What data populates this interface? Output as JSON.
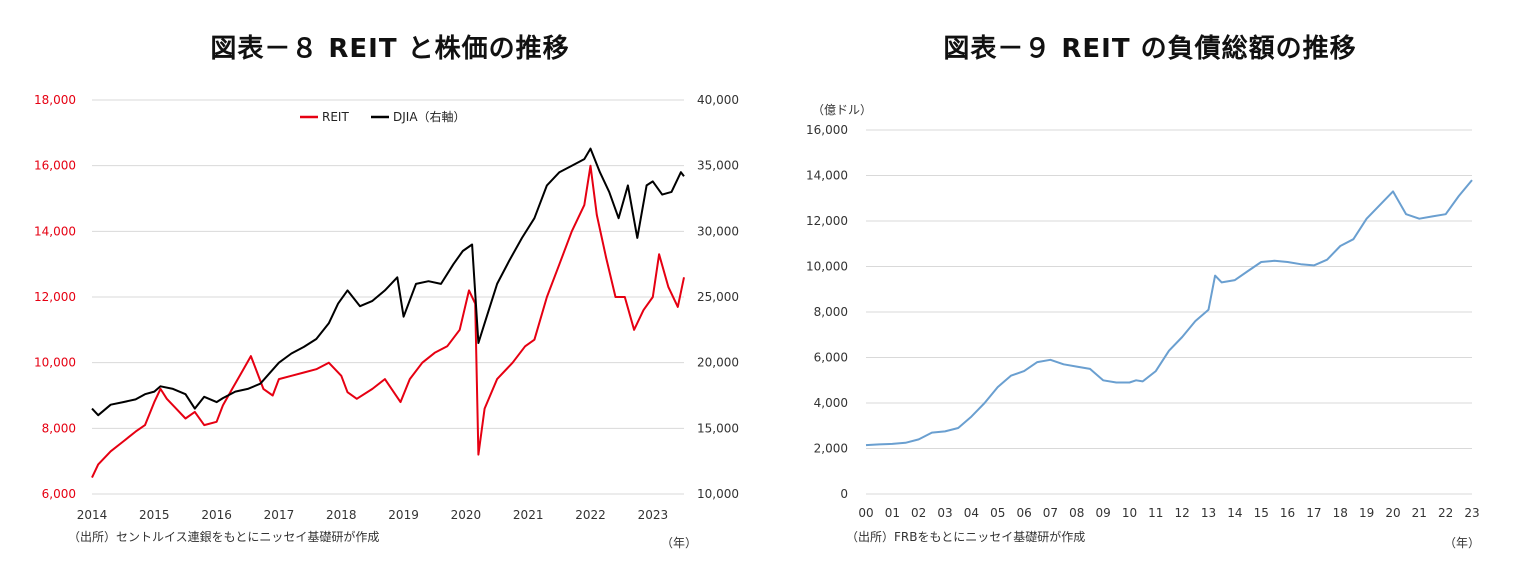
{
  "chart8": {
    "title": "図表－８ REIT と株価の推移",
    "source": "（出所）セントルイス連銀をもとにニッセイ基礎研が作成",
    "unit_note": "（年）",
    "legend": [
      "REIT",
      "DJIA（右軸）"
    ]
  },
  "chart9": {
    "title": "図表－９ REIT の負債総額の推移",
    "source": "（出所）FRBをもとにニッセイ基礎研が作成",
    "unit_note": "（年）",
    "y_unit": "（億ドル）"
  },
  "chart_data": [
    {
      "type": "line",
      "title": "図表－８ REIT と株価の推移",
      "x_ticks": [
        "2014",
        "2015",
        "2016",
        "2017",
        "2018",
        "2019",
        "2020",
        "2021",
        "2022",
        "2023"
      ],
      "xlim": [
        2014.0,
        2023.5
      ],
      "ylim_left": [
        6000,
        18000
      ],
      "yticks_left": [
        "6,000",
        "8,000",
        "10,000",
        "12,000",
        "14,000",
        "16,000",
        "18,000"
      ],
      "ylim_right": [
        10000,
        40000
      ],
      "yticks_right": [
        "10,000",
        "15,000",
        "20,000",
        "25,000",
        "30,000",
        "35,000",
        "40,000"
      ],
      "grid": true,
      "legend_position": "top-center",
      "colors": {
        "REIT": "#e60012",
        "DJIA": "#000000"
      },
      "series": [
        {
          "name": "REIT",
          "axis": "left",
          "x": [
            2014.0,
            2014.1,
            2014.3,
            2014.5,
            2014.7,
            2014.85,
            2015.0,
            2015.1,
            2015.2,
            2015.35,
            2015.5,
            2015.65,
            2015.8,
            2016.0,
            2016.1,
            2016.25,
            2016.4,
            2016.55,
            2016.75,
            2016.9,
            2017.0,
            2017.2,
            2017.4,
            2017.6,
            2017.8,
            2018.0,
            2018.1,
            2018.25,
            2018.5,
            2018.7,
            2018.95,
            2019.1,
            2019.3,
            2019.5,
            2019.7,
            2019.9,
            2020.05,
            2020.15,
            2020.2,
            2020.3,
            2020.5,
            2020.75,
            2020.95,
            2021.1,
            2021.3,
            2021.5,
            2021.7,
            2021.9,
            2022.0,
            2022.1,
            2022.25,
            2022.4,
            2022.55,
            2022.7,
            2022.85,
            2023.0,
            2023.1,
            2023.25,
            2023.4,
            2023.5
          ],
          "values": [
            6500,
            6900,
            7300,
            7600,
            7900,
            8100,
            8800,
            9200,
            8900,
            8600,
            8300,
            8500,
            8100,
            8200,
            8700,
            9200,
            9700,
            10200,
            9200,
            9000,
            9500,
            9600,
            9700,
            9800,
            10000,
            9600,
            9100,
            8900,
            9200,
            9500,
            8800,
            9500,
            10000,
            10300,
            10500,
            11000,
            12200,
            11800,
            7200,
            8600,
            9500,
            10000,
            10500,
            10700,
            12000,
            13000,
            14000,
            14800,
            16000,
            14500,
            13200,
            12000,
            12000,
            11000,
            11600,
            12000,
            13300,
            12300,
            11700,
            12600
          ]
        },
        {
          "name": "DJIA",
          "axis": "right",
          "x": [
            2014.0,
            2014.1,
            2014.3,
            2014.5,
            2014.7,
            2014.85,
            2015.0,
            2015.1,
            2015.3,
            2015.5,
            2015.65,
            2015.8,
            2016.0,
            2016.1,
            2016.3,
            2016.5,
            2016.7,
            2016.85,
            2017.0,
            2017.2,
            2017.4,
            2017.6,
            2017.8,
            2017.95,
            2018.1,
            2018.3,
            2018.5,
            2018.7,
            2018.9,
            2019.0,
            2019.2,
            2019.4,
            2019.6,
            2019.8,
            2019.95,
            2020.1,
            2020.2,
            2020.3,
            2020.5,
            2020.7,
            2020.9,
            2021.1,
            2021.3,
            2021.5,
            2021.7,
            2021.9,
            2022.0,
            2022.15,
            2022.3,
            2022.45,
            2022.6,
            2022.75,
            2022.9,
            2023.0,
            2023.15,
            2023.3,
            2023.45,
            2023.5
          ],
          "values": [
            16500,
            16000,
            16800,
            17000,
            17200,
            17600,
            17800,
            18200,
            18000,
            17600,
            16500,
            17400,
            17000,
            17300,
            17800,
            18000,
            18400,
            19200,
            20000,
            20700,
            21200,
            21800,
            23000,
            24500,
            25500,
            24300,
            24700,
            25500,
            26500,
            23500,
            26000,
            26200,
            26000,
            27500,
            28500,
            29000,
            21500,
            23000,
            26000,
            27800,
            29500,
            31000,
            33500,
            34500,
            35000,
            35500,
            36300,
            34500,
            33000,
            31000,
            33500,
            29500,
            33500,
            33800,
            32800,
            33000,
            34500,
            34200
          ]
        }
      ]
    },
    {
      "type": "line",
      "title": "図表－９ REIT の負債総額の推移",
      "ylabel": "（億ドル）",
      "x_ticks": [
        "00",
        "01",
        "02",
        "03",
        "04",
        "05",
        "06",
        "07",
        "08",
        "09",
        "10",
        "11",
        "12",
        "13",
        "14",
        "15",
        "16",
        "17",
        "18",
        "19",
        "20",
        "21",
        "22",
        "23"
      ],
      "xlim": [
        2000,
        2023
      ],
      "ylim": [
        0,
        16000
      ],
      "yticks": [
        "0",
        "2,000",
        "4,000",
        "6,000",
        "8,000",
        "10,000",
        "12,000",
        "14,000",
        "16,000"
      ],
      "grid": true,
      "colors": {
        "line": "#6a9fd0"
      },
      "series": [
        {
          "x": [
            2000,
            2000.5,
            2001,
            2001.5,
            2002,
            2002.5,
            2003,
            2003.5,
            2004,
            2004.25,
            2004.5,
            2005,
            2005.5,
            2006,
            2006.5,
            2007,
            2007.5,
            2008,
            2008.5,
            2009,
            2009.5,
            2010,
            2010.25,
            2010.5,
            2011,
            2011.5,
            2012,
            2012.5,
            2013,
            2013.25,
            2013.5,
            2014,
            2014.5,
            2015,
            2015.5,
            2016,
            2016.5,
            2017,
            2017.5,
            2018,
            2018.5,
            2019,
            2019.5,
            2020,
            2020.5,
            2021,
            2021.5,
            2022,
            2022.5,
            2023
          ],
          "values": [
            2150,
            2180,
            2200,
            2250,
            2400,
            2700,
            2750,
            2900,
            3400,
            3700,
            4000,
            4700,
            5200,
            5400,
            5800,
            5900,
            5700,
            5600,
            5500,
            5000,
            4900,
            4900,
            5000,
            4950,
            5400,
            6300,
            6900,
            7600,
            8100,
            9600,
            9300,
            9400,
            9800,
            10200,
            10250,
            10200,
            10100,
            10050,
            10300,
            10900,
            11200,
            12100,
            12700,
            13300,
            12300,
            12100,
            12200,
            12300,
            13100,
            13800
          ]
        }
      ]
    }
  ]
}
